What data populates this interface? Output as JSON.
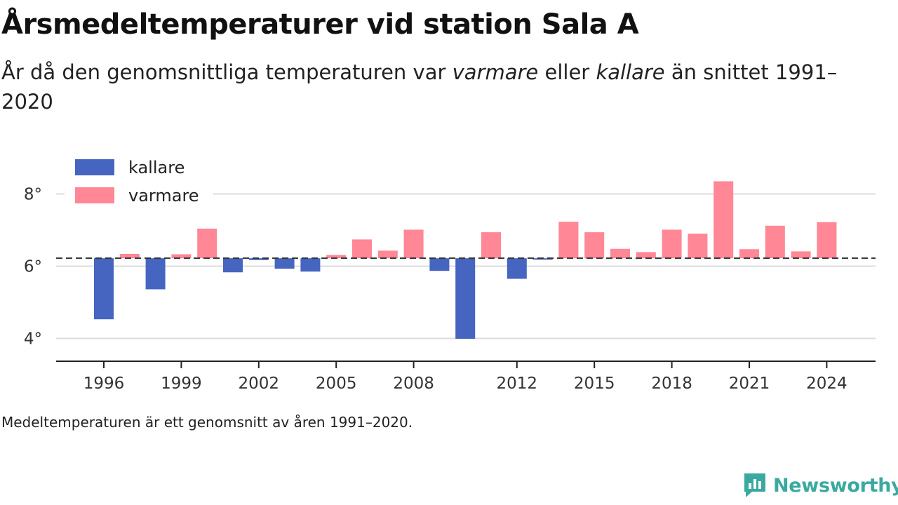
{
  "title": "Årsmedeltemperaturer vid station Sala A",
  "subtitle": {
    "part1": "År då den genomsnittliga temperaturen var ",
    "warm_word": "varmare",
    "part2": " eller ",
    "cold_word": "kallare",
    "part3": " än snittet 1991–2020"
  },
  "footnote": "Medeltemperaturen är ett genomsnitt av åren 1991–2020.",
  "brand": "Newsworthy",
  "chart_data": {
    "type": "bar",
    "title": "Årsmedeltemperaturer vid station Sala A",
    "xlabel": "",
    "ylabel": "",
    "baseline": 6.22,
    "ylim": [
      3.4,
      9.2
    ],
    "y_ticks": [
      4,
      6,
      8
    ],
    "y_tick_labels": [
      "4°",
      "6°",
      "8°"
    ],
    "x_ticks": [
      1996,
      1999,
      2002,
      2005,
      2008,
      2012,
      2015,
      2018,
      2021,
      2024
    ],
    "grid": true,
    "legend_position": "top-left",
    "colors": {
      "kallare": "#4565c0",
      "varmare": "#ff8796"
    },
    "legend": [
      {
        "key": "kallare",
        "label": "kallare"
      },
      {
        "key": "varmare",
        "label": "varmare"
      }
    ],
    "years": [
      1996,
      1997,
      1998,
      1999,
      2000,
      2001,
      2002,
      2003,
      2004,
      2005,
      2006,
      2007,
      2008,
      2009,
      2010,
      2011,
      2012,
      2013,
      2014,
      2015,
      2016,
      2017,
      2018,
      2019,
      2020,
      2021,
      2022,
      2023,
      2024
    ],
    "values": [
      4.53,
      6.34,
      5.36,
      6.33,
      7.04,
      5.83,
      6.17,
      5.93,
      5.85,
      6.31,
      6.74,
      6.43,
      7.01,
      5.87,
      3.99,
      6.94,
      5.65,
      6.18,
      7.23,
      6.94,
      6.48,
      6.39,
      7.01,
      6.9,
      8.35,
      6.47,
      7.12,
      6.41,
      7.22
    ]
  }
}
